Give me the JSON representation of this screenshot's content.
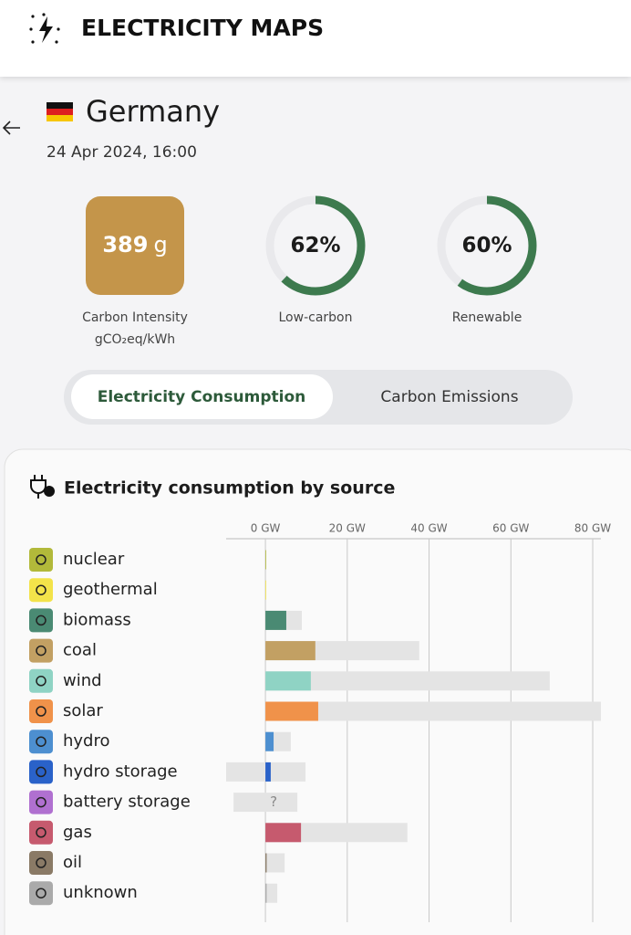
{
  "header": {
    "logo_text": "ELECTRICITY MAPS"
  },
  "zone": {
    "name": "Germany",
    "datetime": "24 Apr 2024, 16:00"
  },
  "metrics": {
    "carbon_intensity": {
      "value": 389,
      "unit": "g",
      "label": "Carbon Intensity",
      "sublabel": "gCO₂eq/kWh"
    },
    "low_carbon": {
      "value": 62,
      "unit": "%",
      "label": "Low-carbon"
    },
    "renewable": {
      "value": 60,
      "unit": "%",
      "label": "Renewable"
    }
  },
  "tabs": [
    "Electricity Consumption",
    "Carbon Emissions"
  ],
  "chart_data": {
    "type": "bar",
    "title": "Electricity consumption by source",
    "categories": [
      "nuclear",
      "geothermal",
      "biomass",
      "coal",
      "wind",
      "solar",
      "hydro",
      "hydro storage",
      "battery storage",
      "gas",
      "oil",
      "unknown"
    ],
    "values": [
      0,
      0,
      5.1,
      12.2,
      11.1,
      12.9,
      2.0,
      1.3,
      null,
      8.7,
      0.3,
      0.3
    ],
    "value_labels": [
      null,
      null,
      null,
      null,
      null,
      null,
      null,
      null,
      "?",
      null,
      null,
      null
    ],
    "capacity_min": [
      0,
      0,
      0,
      0,
      0,
      0,
      0,
      -9.6,
      -7.8,
      0,
      0,
      0
    ],
    "capacity_max": [
      0,
      0,
      8.9,
      37.6,
      69.5,
      82,
      6.2,
      9.8,
      7.8,
      34.7,
      4.7,
      2.9
    ],
    "colors": [
      "#b2b93a",
      "#f3e34a",
      "#4a8a73",
      "#c2a063",
      "#8fd3c4",
      "#f0924a",
      "#4d8fd0",
      "#2a62c9",
      "#b070d0",
      "#c65a6e",
      "#8a7a66",
      "#aaaaaa"
    ],
    "capacity_color": "#e4e4e4",
    "xlim": [
      -9.6,
      82
    ],
    "xticks": [
      {
        "value": 0,
        "label": "0 GW"
      },
      {
        "value": 20,
        "label": "20 GW"
      },
      {
        "value": 40,
        "label": "40 GW"
      },
      {
        "value": 60,
        "label": "60 GW"
      },
      {
        "value": 80,
        "label": "80 GW"
      }
    ],
    "grid": true
  }
}
